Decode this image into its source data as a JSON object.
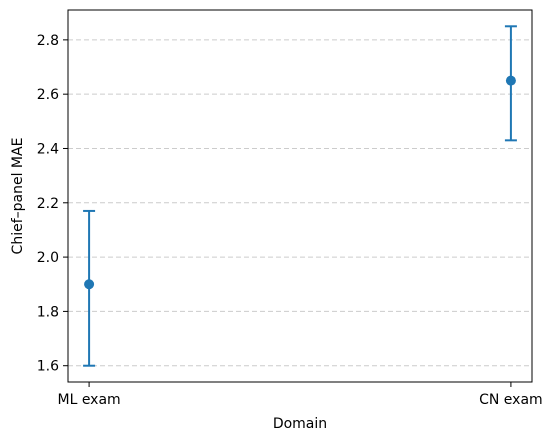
{
  "chart_data": {
    "type": "scatter",
    "title": "",
    "xlabel": "Domain",
    "ylabel": "Chief–panel MAE",
    "categories": [
      "ML exam",
      "CN exam"
    ],
    "series": [
      {
        "values": [
          1.9,
          2.65
        ],
        "error_low": [
          1.6,
          2.43
        ],
        "error_high": [
          2.17,
          2.85
        ],
        "color": "#1f77b4"
      }
    ],
    "ylim": [
      1.54,
      2.91
    ],
    "yticks": [
      "1.6",
      "1.8",
      "2.0",
      "2.2",
      "2.4",
      "2.6",
      "2.8"
    ],
    "grid": "horizontal-dashed",
    "legend": "none"
  }
}
